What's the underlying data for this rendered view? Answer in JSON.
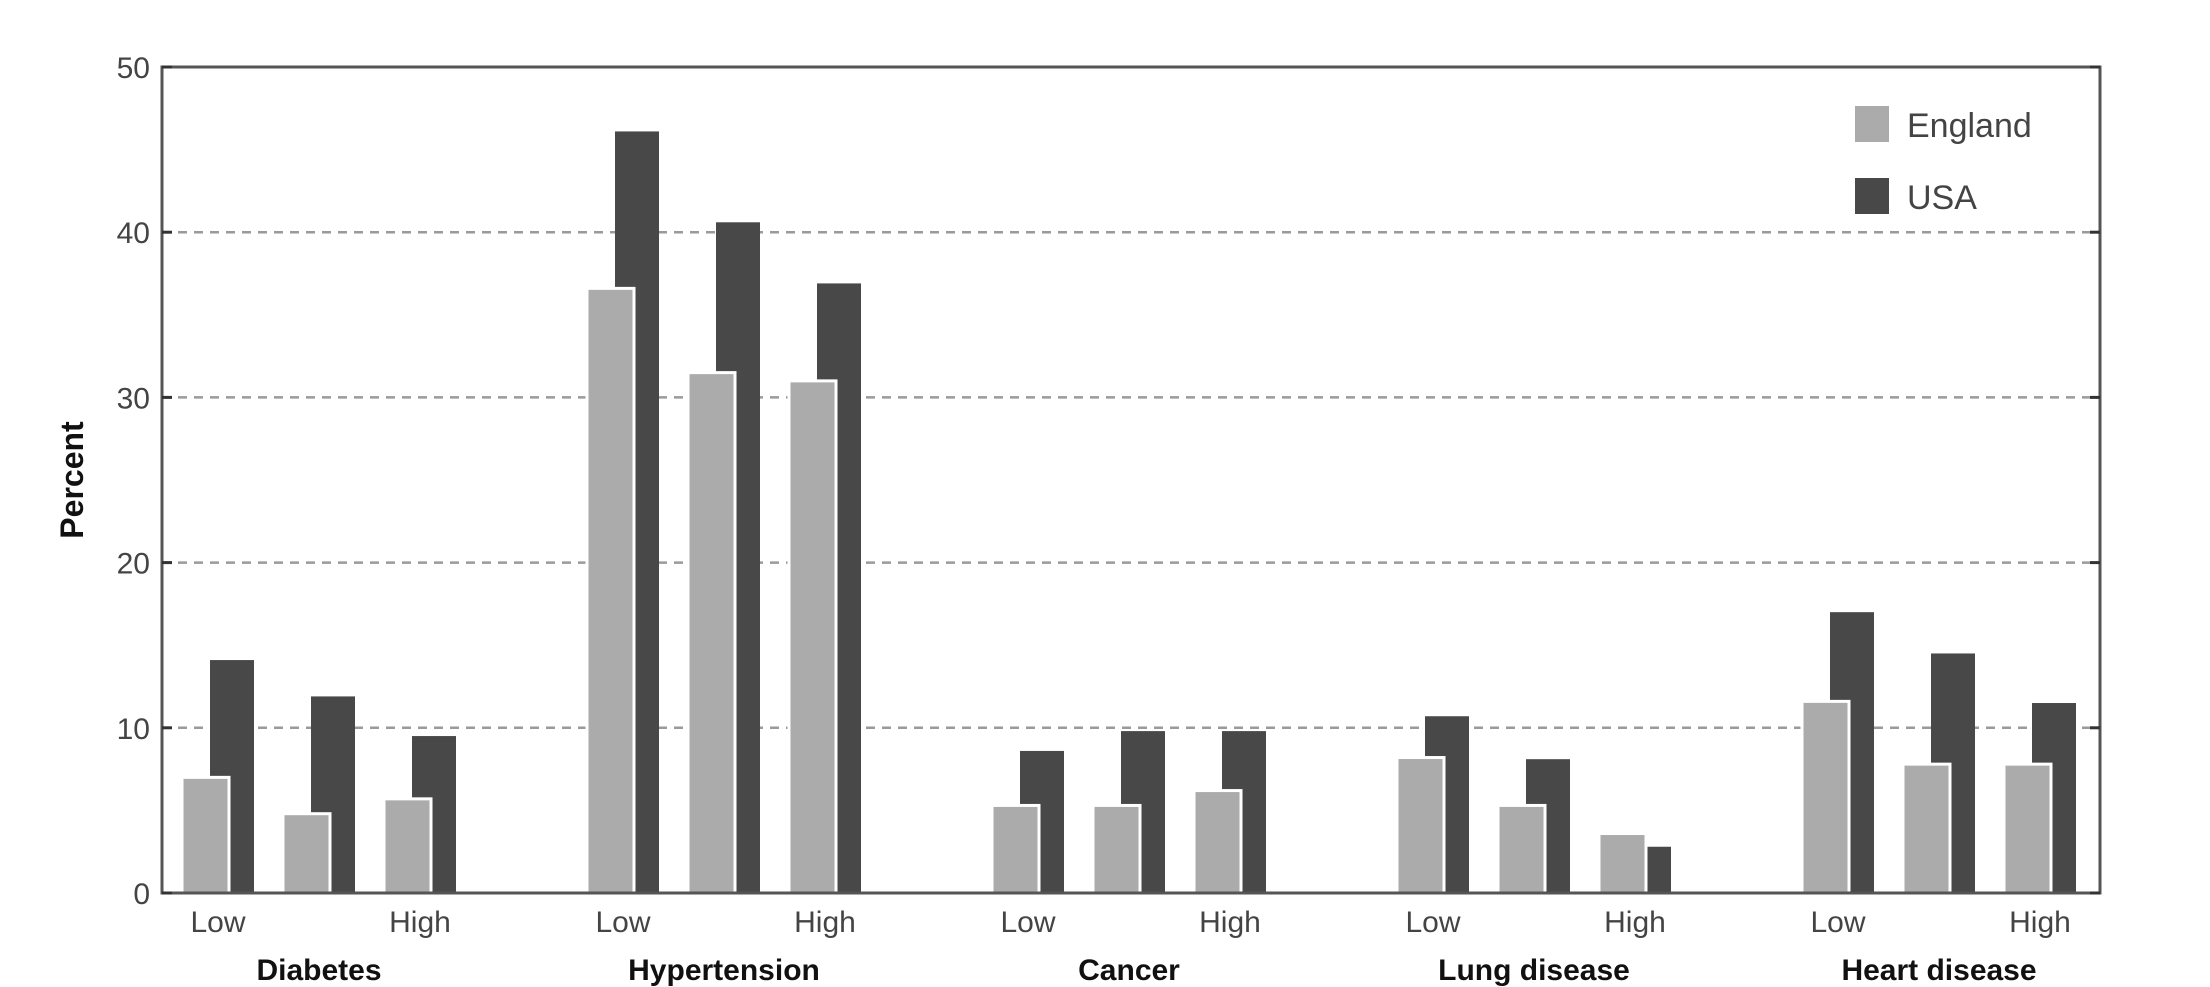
{
  "chart_data": {
    "type": "bar",
    "title": "",
    "ylabel": "Percent",
    "xlabel": "",
    "ylim": [
      0,
      50
    ],
    "yticks": [
      "0",
      "10",
      "20",
      "30",
      "40",
      "50"
    ],
    "grid": true,
    "legend_position": "top-right",
    "groups": [
      "Diabetes",
      "Hypertension",
      "Cancer",
      "Lung disease",
      "Heart disease"
    ],
    "subcategories": [
      "Low",
      "",
      "High"
    ],
    "series": [
      {
        "name": "England",
        "color": "#ababab",
        "values": [
          [
            7.0,
            4.8,
            5.7
          ],
          [
            36.6,
            31.5,
            31.0
          ],
          [
            5.3,
            5.3,
            6.2
          ],
          [
            8.2,
            5.3,
            3.6
          ],
          [
            11.6,
            7.8,
            7.8
          ]
        ]
      },
      {
        "name": "USA",
        "color": "#484848",
        "values": [
          [
            14.1,
            11.9,
            9.5
          ],
          [
            46.1,
            40.6,
            36.9
          ],
          [
            8.6,
            9.8,
            9.8
          ],
          [
            10.7,
            8.1,
            2.8
          ],
          [
            17.0,
            14.5,
            11.5
          ]
        ]
      }
    ]
  }
}
